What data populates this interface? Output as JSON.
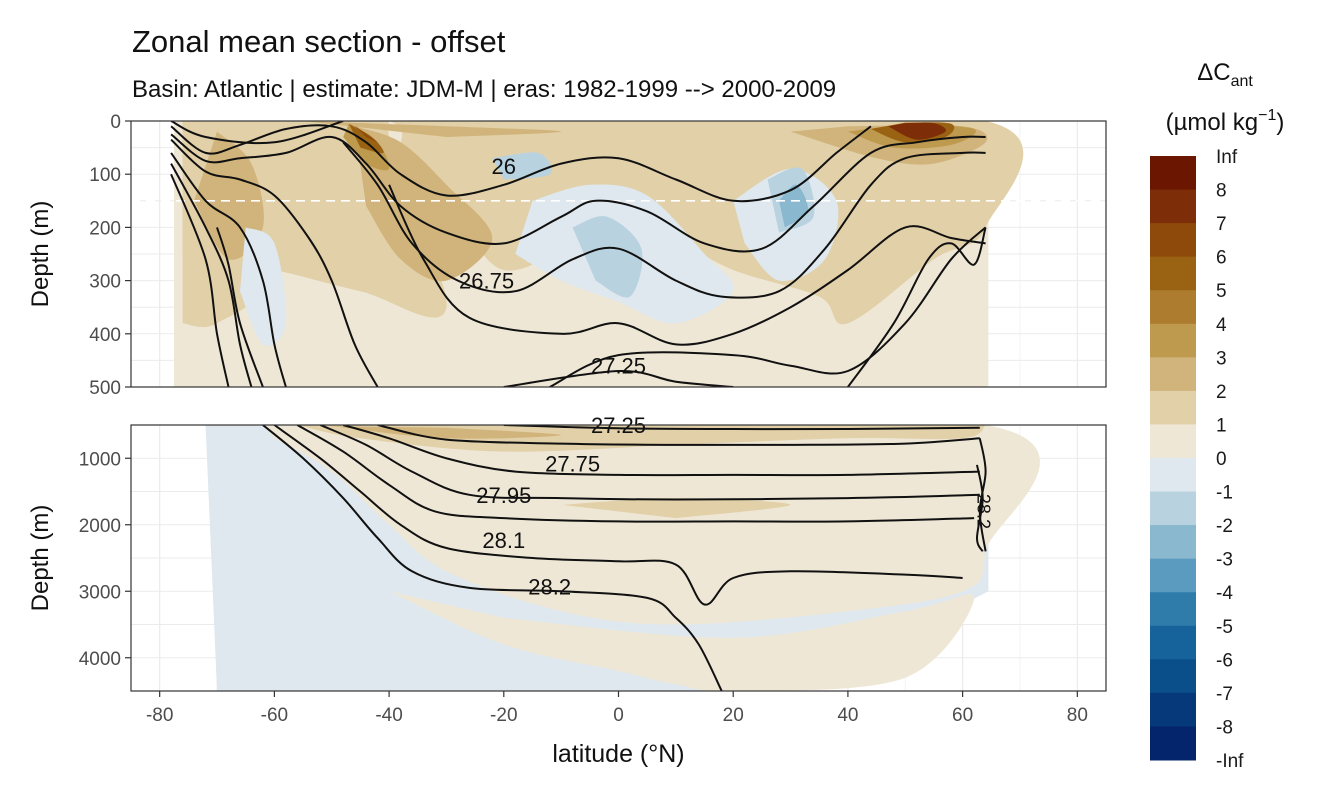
{
  "chart_data": {
    "type": "heatmap",
    "title": "Zonal mean section - offset",
    "subtitle": "Basin: Atlantic | estimate: JDM-M | eras: 1982-1999 --> 2000-2009",
    "xlabel": "latitude (°N)",
    "xlim": [
      -85,
      85
    ],
    "x_ticks": [
      "-80",
      "-60",
      "-40",
      "-20",
      "0",
      "20",
      "40",
      "60",
      "80"
    ],
    "panels": [
      {
        "ylabel": "Depth (m)",
        "ylim": [
          0,
          500
        ],
        "y_ticks": [
          "0",
          "100",
          "200",
          "300",
          "400",
          "500"
        ],
        "reference_depth": 150,
        "contour_labels": [
          {
            "text": "26",
            "lat": -20,
            "depth": 85
          },
          {
            "text": "26.75",
            "lat": -23,
            "depth": 300
          },
          {
            "text": "27.25",
            "lat": 0,
            "depth": 460
          }
        ]
      },
      {
        "ylabel": "Depth (m)",
        "ylim": [
          500,
          4500
        ],
        "y_ticks": [
          "1000",
          "2000",
          "3000",
          "4000"
        ],
        "contour_labels": [
          {
            "text": "27.25",
            "lat": 0,
            "depth": 500
          },
          {
            "text": "27.75",
            "lat": -8,
            "depth": 1080
          },
          {
            "text": "27.95",
            "lat": -20,
            "depth": 1550
          },
          {
            "text": "28.1",
            "lat": -20,
            "depth": 2230
          },
          {
            "text": "28.2",
            "lat": -12,
            "depth": 2930
          },
          {
            "text": "28.2",
            "lat": 64,
            "depth": 1800
          }
        ]
      }
    ],
    "legend": {
      "title": "ΔC",
      "title_sub": "ant",
      "unit": "(µmol kg",
      "unit_sup": "−1",
      "unit_close": ")",
      "position": "right",
      "levels": [
        "Inf",
        "8",
        "7",
        "6",
        "5",
        "4",
        "3",
        "2",
        "1",
        "0",
        "-1",
        "-2",
        "-3",
        "-4",
        "-5",
        "-6",
        "-7",
        "-8",
        "-Inf"
      ],
      "colors": [
        "#6b1600",
        "#7d2e08",
        "#8e4a0a",
        "#9a6213",
        "#ad7c2e",
        "#be9a4f",
        "#d1b47b",
        "#e2d0a9",
        "#efe7d6",
        "#dee8ee",
        "#b8d2e0",
        "#8ab8cf",
        "#5a9bbf",
        "#2f7cab",
        "#15639a",
        "#0a4e8a",
        "#05397a",
        "#04256b",
        "#010c59"
      ]
    }
  }
}
